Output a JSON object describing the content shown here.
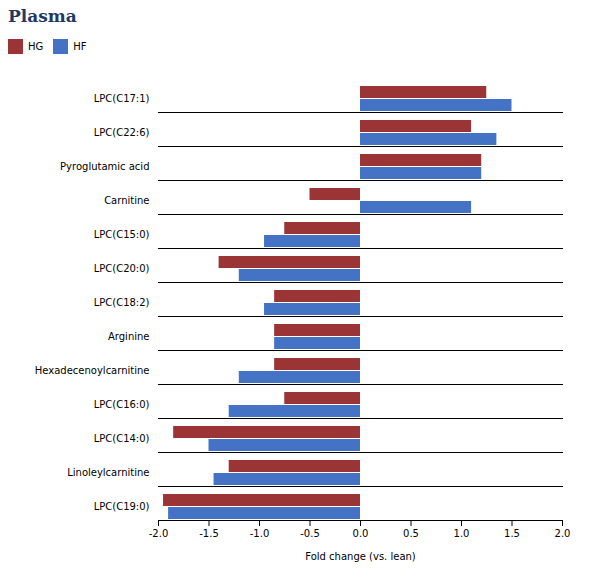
{
  "chart_data": {
    "type": "bar",
    "orientation": "horizontal",
    "title": "Plasma",
    "xlabel": "Fold change (vs. lean)",
    "categories": [
      "LPC(C17:1)",
      "LPC(C22:6)",
      "Pyroglutamic acid",
      "Carnitine",
      "LPC(C15:0)",
      "LPC(C20:0)",
      "LPC(C18:2)",
      "Arginine",
      "Hexadecenoylcarnitine",
      "LPC(C16:0)",
      "LPC(C14:0)",
      "Linoleylcarnitine",
      "LPC(C19:0)"
    ],
    "series": [
      {
        "name": "HG",
        "color": "#9b3535",
        "values": [
          1.25,
          1.1,
          1.2,
          -0.5,
          -0.75,
          -1.4,
          -0.85,
          -0.85,
          -0.85,
          -0.75,
          -1.85,
          -1.3,
          -1.95
        ]
      },
      {
        "name": "HF",
        "color": "#4472c4",
        "values": [
          1.5,
          1.35,
          1.2,
          1.1,
          -0.95,
          -1.2,
          -0.95,
          -0.85,
          -1.2,
          -1.3,
          -1.5,
          -1.45,
          -1.9
        ]
      }
    ],
    "xlim": [
      -2.0,
      2.0
    ],
    "xticks": [
      {
        "value": -2.0,
        "label": "-2.0"
      },
      -1.5,
      {
        "value": -1.0,
        "label": "-1.0"
      },
      -0.5,
      {
        "value": 0.0,
        "label": "0.0"
      },
      0.5,
      {
        "value": 1.0,
        "label": "1.0"
      },
      1.5,
      {
        "value": 2.0,
        "label": "2.0"
      }
    ],
    "grid": false,
    "legend": "upper left"
  }
}
